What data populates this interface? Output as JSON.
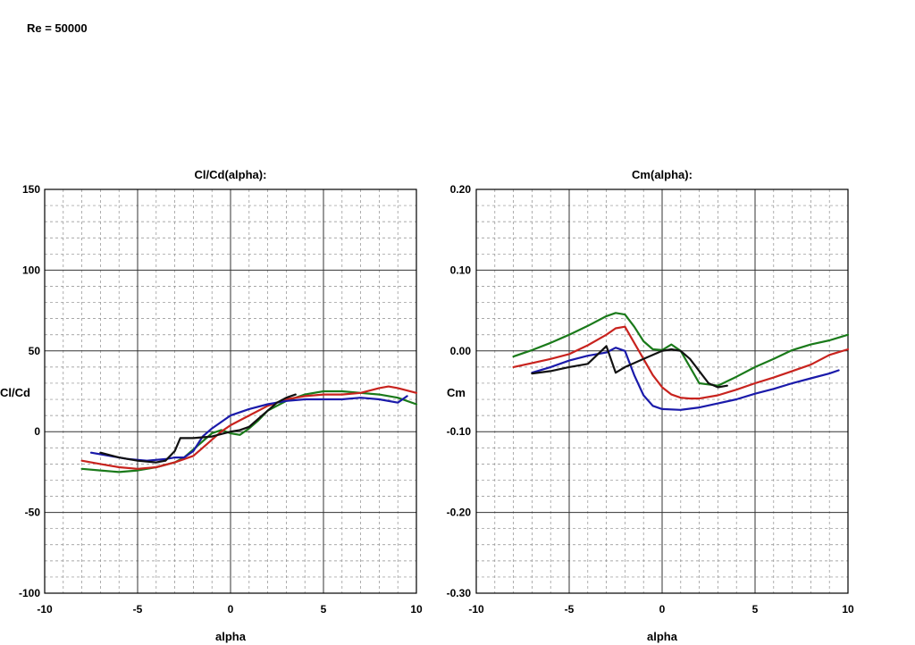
{
  "page": {
    "title": "Re = 50000"
  },
  "chart_data": [
    {
      "type": "line",
      "title": "Cl/Cd(alpha):",
      "xlabel": "alpha",
      "ylabel": "Cl/Cd",
      "xlim": [
        -10,
        10
      ],
      "ylim": [
        -100,
        150
      ],
      "xticks": [
        -10,
        -5,
        0,
        5,
        10
      ],
      "yticks": [
        -100,
        -50,
        0,
        50,
        100,
        150
      ],
      "xtick_labels": [
        "-10",
        "-5",
        "0",
        "5",
        "10"
      ],
      "ytick_labels": [
        "-100",
        "-50",
        "0",
        "50",
        "100",
        "150"
      ],
      "grid": true,
      "series": [
        {
          "name": "green",
          "color": "#1a7a1a",
          "x": [
            -8,
            -7,
            -6,
            -5,
            -4,
            -3,
            -2.5,
            -2,
            -1.5,
            -1,
            -0.5,
            0,
            0.5,
            1,
            1.5,
            2,
            3,
            4,
            5,
            6,
            7,
            8,
            9,
            10
          ],
          "y": [
            -23,
            -24,
            -25,
            -24,
            -22,
            -19,
            -16,
            -11,
            -6,
            -1,
            1,
            -1,
            -2,
            2,
            7,
            13,
            19,
            23,
            25,
            25,
            24,
            23,
            21,
            17
          ]
        },
        {
          "name": "red",
          "color": "#c8231e",
          "x": [
            -8,
            -7,
            -6,
            -5,
            -4,
            -3,
            -2,
            -1.5,
            -1,
            -0.5,
            0,
            1,
            2,
            3,
            4,
            5,
            6,
            7,
            8,
            8.5,
            9,
            10
          ],
          "y": [
            -18,
            -20,
            -22,
            -23,
            -22,
            -19,
            -15,
            -10,
            -5,
            0,
            4,
            10,
            16,
            20,
            22,
            23,
            23,
            24,
            27,
            28,
            27,
            24
          ]
        },
        {
          "name": "blue",
          "color": "#1a1aaa",
          "x": [
            -7.5,
            -6.5,
            -5.5,
            -4.5,
            -3.5,
            -3,
            -2.5,
            -2,
            -1.5,
            -1,
            0,
            1,
            2,
            3,
            4,
            5,
            6,
            7,
            8,
            9,
            9.5
          ],
          "y": [
            -13,
            -15,
            -17,
            -18,
            -17,
            -16,
            -16,
            -12,
            -3,
            2,
            10,
            14,
            17,
            19,
            20,
            20,
            20,
            21,
            20,
            18,
            22
          ]
        },
        {
          "name": "black",
          "color": "#111111",
          "x": [
            -7,
            -6,
            -5,
            -4,
            -3.5,
            -3,
            -2.7,
            -2.5,
            -2,
            -1,
            0,
            0.5,
            1,
            1.5,
            2,
            2.5,
            3,
            3.5
          ],
          "y": [
            -13,
            -16,
            -18,
            -19,
            -18,
            -12,
            -4,
            -4,
            -4,
            -3,
            0,
            1,
            3,
            8,
            13,
            18,
            21,
            23
          ]
        }
      ]
    },
    {
      "type": "line",
      "title": "Cm(alpha):",
      "xlabel": "alpha",
      "ylabel": "Cm",
      "xlim": [
        -10,
        10
      ],
      "ylim": [
        -0.3,
        0.2
      ],
      "xticks": [
        -10,
        -5,
        0,
        5,
        10
      ],
      "yticks": [
        -0.3,
        -0.2,
        -0.1,
        0.0,
        0.1,
        0.2
      ],
      "xtick_labels": [
        "-10",
        "-5",
        "0",
        "5",
        "10"
      ],
      "ytick_labels": [
        "-0.30",
        "-0.20",
        "-0.10",
        "0.00",
        "0.10",
        "0.20"
      ],
      "grid": true,
      "series": [
        {
          "name": "green",
          "color": "#1a7a1a",
          "x": [
            -8,
            -7,
            -6,
            -5,
            -4,
            -3,
            -2.5,
            -2,
            -1.5,
            -1,
            -0.5,
            0,
            0.5,
            1,
            1.5,
            2,
            3,
            4,
            5,
            6,
            7,
            8,
            9,
            10
          ],
          "y": [
            -0.007,
            0.001,
            0.01,
            0.02,
            0.031,
            0.043,
            0.047,
            0.045,
            0.03,
            0.012,
            0.002,
            0.001,
            0.008,
            0.0,
            -0.02,
            -0.04,
            -0.043,
            -0.032,
            -0.02,
            -0.01,
            0.001,
            0.008,
            0.013,
            0.02
          ]
        },
        {
          "name": "red",
          "color": "#c8231e",
          "x": [
            -8,
            -7,
            -6,
            -5,
            -4,
            -3,
            -2.5,
            -2,
            -1.5,
            -1,
            -0.5,
            0,
            0.5,
            1,
            1.5,
            2,
            3,
            4,
            5,
            6,
            7,
            8,
            9,
            10
          ],
          "y": [
            -0.02,
            -0.015,
            -0.01,
            -0.004,
            0.007,
            0.02,
            0.028,
            0.03,
            0.01,
            -0.01,
            -0.03,
            -0.045,
            -0.054,
            -0.058,
            -0.059,
            -0.059,
            -0.055,
            -0.048,
            -0.04,
            -0.033,
            -0.025,
            -0.017,
            -0.005,
            0.002
          ]
        },
        {
          "name": "blue",
          "color": "#1a1aaa",
          "x": [
            -7,
            -6,
            -5,
            -4,
            -3,
            -2.5,
            -2,
            -1.5,
            -1,
            -0.5,
            0,
            1,
            2,
            3,
            4,
            5,
            6,
            7,
            8,
            9,
            9.5
          ],
          "y": [
            -0.027,
            -0.02,
            -0.012,
            -0.006,
            -0.002,
            0.004,
            0.0,
            -0.03,
            -0.055,
            -0.068,
            -0.072,
            -0.073,
            -0.07,
            -0.065,
            -0.06,
            -0.053,
            -0.047,
            -0.04,
            -0.034,
            -0.028,
            -0.024
          ]
        },
        {
          "name": "black",
          "color": "#111111",
          "x": [
            -7,
            -6,
            -5,
            -4,
            -3,
            -2.5,
            -2,
            -1.5,
            -1,
            -0.5,
            0,
            0.5,
            1,
            1.5,
            2,
            2.5,
            3,
            3.5
          ],
          "y": [
            -0.028,
            -0.025,
            -0.02,
            -0.016,
            0.006,
            -0.027,
            -0.02,
            -0.015,
            -0.01,
            -0.005,
            0.0,
            0.002,
            0.0,
            -0.01,
            -0.025,
            -0.04,
            -0.045,
            -0.043
          ]
        }
      ]
    }
  ]
}
